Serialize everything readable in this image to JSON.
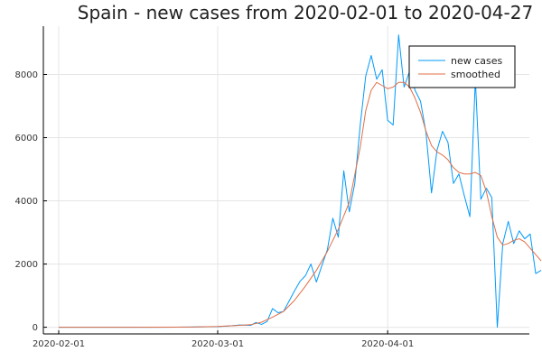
{
  "chart_data": {
    "type": "line",
    "title": "Spain - new cases from 2020-02-01 to 2020-04-27",
    "xlabel": "",
    "ylabel": "",
    "xlim": [
      "2020-02-01",
      "2020-04-27"
    ],
    "ylim": [
      0,
      9000
    ],
    "x_ticks": [
      "2020-02-01",
      "2020-03-01",
      "2020-04-01"
    ],
    "y_ticks": [
      0,
      2000,
      4000,
      6000,
      8000
    ],
    "grid": true,
    "legend_position": "top-right",
    "series": [
      {
        "name": "new cases",
        "color": "#009AFA",
        "points": [
          [
            "2020-02-01",
            0
          ],
          [
            "2020-02-10",
            0
          ],
          [
            "2020-02-20",
            0
          ],
          [
            "2020-02-25",
            5
          ],
          [
            "2020-03-01",
            20
          ],
          [
            "2020-03-03",
            40
          ],
          [
            "2020-03-05",
            70
          ],
          [
            "2020-03-07",
            60
          ],
          [
            "2020-03-08",
            150
          ],
          [
            "2020-03-09",
            90
          ],
          [
            "2020-03-10",
            180
          ],
          [
            "2020-03-11",
            590
          ],
          [
            "2020-03-12",
            460
          ],
          [
            "2020-03-13",
            500
          ],
          [
            "2020-03-14",
            820
          ],
          [
            "2020-03-15",
            1150
          ],
          [
            "2020-03-16",
            1450
          ],
          [
            "2020-03-17",
            1630
          ],
          [
            "2020-03-18",
            2000
          ],
          [
            "2020-03-19",
            1430
          ],
          [
            "2020-03-20",
            1950
          ],
          [
            "2020-03-21",
            2450
          ],
          [
            "2020-03-22",
            3450
          ],
          [
            "2020-03-23",
            2850
          ],
          [
            "2020-03-24",
            4950
          ],
          [
            "2020-03-25",
            3650
          ],
          [
            "2020-03-26",
            4550
          ],
          [
            "2020-03-27",
            6400
          ],
          [
            "2020-03-28",
            7950
          ],
          [
            "2020-03-29",
            8600
          ],
          [
            "2020-03-30",
            7850
          ],
          [
            "2020-03-31",
            8150
          ],
          [
            "2020-04-01",
            6550
          ],
          [
            "2020-04-02",
            6400
          ],
          [
            "2020-04-03",
            9250
          ],
          [
            "2020-04-04",
            7600
          ],
          [
            "2020-04-05",
            8100
          ],
          [
            "2020-04-06",
            7500
          ],
          [
            "2020-04-07",
            7150
          ],
          [
            "2020-04-08",
            6150
          ],
          [
            "2020-04-09",
            4250
          ],
          [
            "2020-04-10",
            5600
          ],
          [
            "2020-04-11",
            6200
          ],
          [
            "2020-04-12",
            5850
          ],
          [
            "2020-04-13",
            4550
          ],
          [
            "2020-04-14",
            4850
          ],
          [
            "2020-04-15",
            4150
          ],
          [
            "2020-04-16",
            3500
          ],
          [
            "2020-04-17",
            7850
          ],
          [
            "2020-04-18",
            4050
          ],
          [
            "2020-04-19",
            4400
          ],
          [
            "2020-04-20",
            4100
          ],
          [
            "2020-04-21",
            0
          ],
          [
            "2020-04-22",
            2650
          ],
          [
            "2020-04-23",
            3350
          ],
          [
            "2020-04-24",
            2650
          ],
          [
            "2020-04-25",
            3050
          ],
          [
            "2020-04-26",
            2800
          ],
          [
            "2020-04-27",
            2950
          ],
          [
            "2020-04-28",
            1700
          ],
          [
            "2020-04-29",
            1800
          ]
        ]
      },
      {
        "name": "smoothed",
        "color": "#E26F46",
        "points": [
          [
            "2020-02-01",
            0
          ],
          [
            "2020-02-15",
            0
          ],
          [
            "2020-02-25",
            5
          ],
          [
            "2020-03-01",
            25
          ],
          [
            "2020-03-04",
            50
          ],
          [
            "2020-03-07",
            80
          ],
          [
            "2020-03-09",
            160
          ],
          [
            "2020-03-11",
            320
          ],
          [
            "2020-03-13",
            500
          ],
          [
            "2020-03-15",
            850
          ],
          [
            "2020-03-17",
            1300
          ],
          [
            "2020-03-19",
            1800
          ],
          [
            "2020-03-21",
            2400
          ],
          [
            "2020-03-23",
            3100
          ],
          [
            "2020-03-25",
            3950
          ],
          [
            "2020-03-27",
            5700
          ],
          [
            "2020-03-28",
            6850
          ],
          [
            "2020-03-29",
            7500
          ],
          [
            "2020-03-30",
            7750
          ],
          [
            "2020-03-31",
            7650
          ],
          [
            "2020-04-01",
            7550
          ],
          [
            "2020-04-02",
            7600
          ],
          [
            "2020-04-03",
            7750
          ],
          [
            "2020-04-04",
            7750
          ],
          [
            "2020-04-05",
            7600
          ],
          [
            "2020-04-06",
            7250
          ],
          [
            "2020-04-07",
            6800
          ],
          [
            "2020-04-08",
            6200
          ],
          [
            "2020-04-09",
            5750
          ],
          [
            "2020-04-10",
            5550
          ],
          [
            "2020-04-11",
            5450
          ],
          [
            "2020-04-12",
            5300
          ],
          [
            "2020-04-13",
            5050
          ],
          [
            "2020-04-14",
            4900
          ],
          [
            "2020-04-15",
            4850
          ],
          [
            "2020-04-16",
            4850
          ],
          [
            "2020-04-17",
            4900
          ],
          [
            "2020-04-18",
            4800
          ],
          [
            "2020-04-19",
            4300
          ],
          [
            "2020-04-20",
            3500
          ],
          [
            "2020-04-21",
            2850
          ],
          [
            "2020-04-22",
            2600
          ],
          [
            "2020-04-23",
            2650
          ],
          [
            "2020-04-24",
            2750
          ],
          [
            "2020-04-25",
            2800
          ],
          [
            "2020-04-26",
            2700
          ],
          [
            "2020-04-27",
            2500
          ],
          [
            "2020-04-28",
            2300
          ],
          [
            "2020-04-29",
            2100
          ]
        ]
      }
    ]
  }
}
